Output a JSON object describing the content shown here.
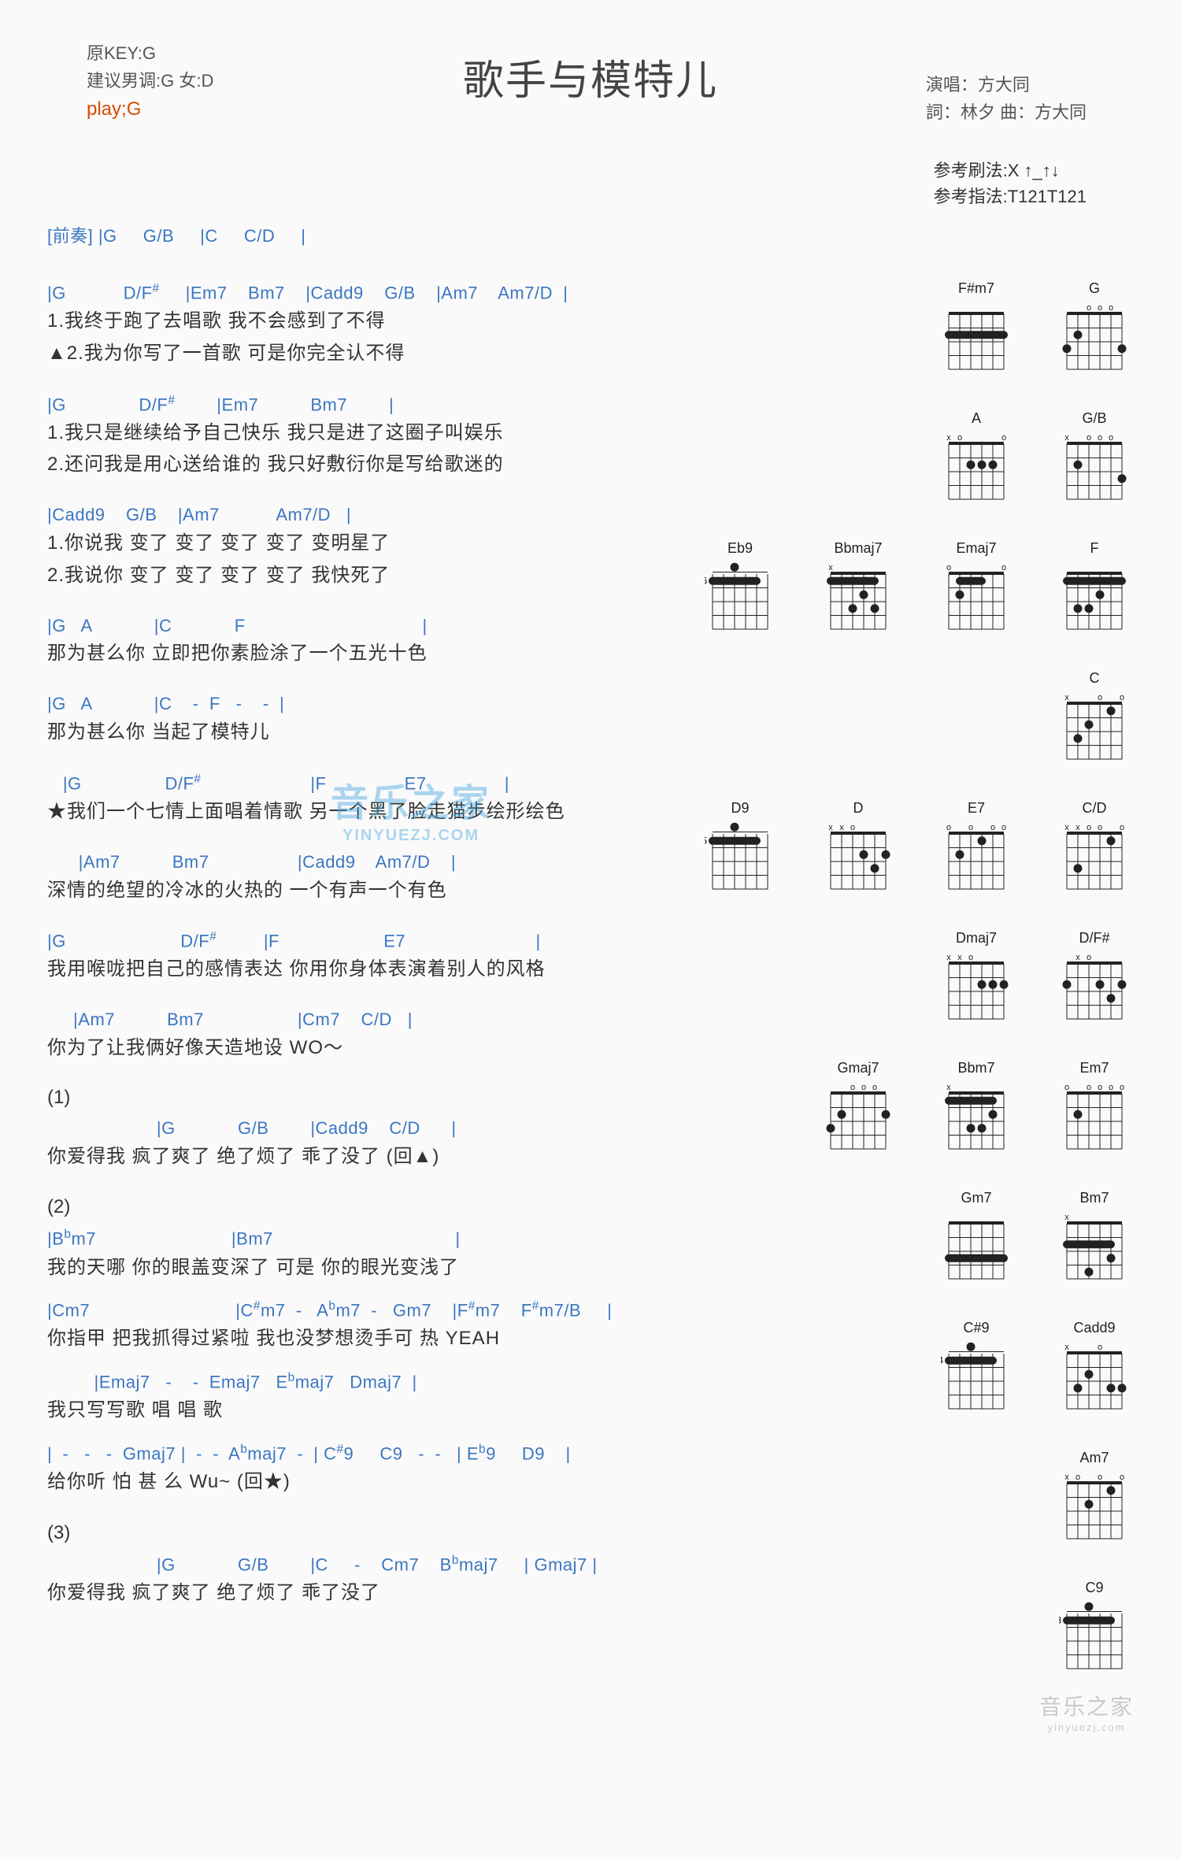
{
  "title": "歌手与模特儿",
  "top_left": {
    "l1": "原KEY:G",
    "l2": "建议男调:G 女:D",
    "l3": "play;G"
  },
  "top_right": {
    "l1": "演唱：方大同",
    "l2": "詞：林夕    曲：方大同"
  },
  "refs": {
    "l1": "参考刷法:X ↑_↑↓",
    "l2": "参考指法:T121T121"
  },
  "intro": "[前奏] |G     G/B     |C     C/D     |",
  "blocks": [
    {
      "chords": "|G           D/F#     |Em7    Bm7    |Cadd9    G/B    |Am7    Am7/D  |",
      "lyrics": [
        "  1.我终于跑了去唱歌                       我不会感到了不得",
        "▲2.我为你写了一首歌                       可是你完全认不得"
      ]
    },
    {
      "chords": "|G              D/F#        |Em7          Bm7        |",
      "lyrics": [
        "  1.我只是继续给予自己快乐    我只是进了这圈子叫娱乐",
        "  2.还问我是用心送给谁的      我只好敷衍你是写给歌迷的"
      ]
    },
    {
      "chords": "|Cadd9    G/B    |Am7           Am7/D   |",
      "lyrics": [
        "  1.你说我     变了 变了 变了 变了    变明星了",
        "  2.我说你     变了 变了 变了 变了    我快死了"
      ]
    },
    {
      "chords": "|G   A            |C            F                                  |",
      "lyrics": [
        "  那为甚么你     立即把你素脸涂了一个五光十色"
      ]
    },
    {
      "chords": "|G   A            |C    -  F   -    -  |",
      "lyrics": [
        "  那为甚么你     当起了模特儿"
      ]
    },
    {
      "chords": "   |G                D/F#                     |F               E7               |",
      "lyrics": [
        "★我们一个七情上面唱着情歌     另一个黑了脸走猫步绘形绘色"
      ]
    },
    {
      "chords": "      |Am7          Bm7                 |Cadd9    Am7/D    |",
      "lyrics": [
        "    深情的绝望的冷冰的火热的     一个有声一个有色"
      ]
    },
    {
      "chords": "|G                      D/F#         |F                    E7                         |",
      "lyrics": [
        "  我用喉咙把自己的感情表达     你用你身体表演着别人的风格"
      ]
    },
    {
      "chords": "     |Am7          Bm7                  |Cm7    C/D   |",
      "lyrics": [
        "    你为了让我俩好像天造地设     WO～"
      ]
    }
  ],
  "section1": {
    "label": "(1)",
    "chords": "                     |G            G/B        |Cadd9    C/D      |",
    "lyric": "    你爱得我     疯了爽了     绝了烦了     乖了没了            (回▲)"
  },
  "section2": {
    "label": "(2)",
    "lines": [
      {
        "chords": "|Bᵇm7                          |Bm7                                   |",
        "lyric": " 我的天哪     你的眼盖变深了     可是     你的眼光变浅了"
      },
      {
        "chords": "|Cm7                            |C#m7  -   Aᵇm7  -   Gm7    |F#m7    F#m7/B     |",
        "lyric": " 你指甲    把我抓得过紧啦       我也没梦想烫手可                         热       YEAH"
      },
      {
        "chords": "         |Emaj7   -    -  Emaj7   Eᵇmaj7   Dmaj7  |",
        "lyric": " 我只写写歌           唱         唱          歌"
      },
      {
        "chords": "|  -   -   -  Gmaj7 |  -  -  Aᵇmaj7  -  | C#9     C9   -  -   | Eᵇ9     D9    |",
        "lyric": "              给你听             怕        甚      么         Wu~           (回★)"
      }
    ]
  },
  "section3": {
    "label": "(3)",
    "chords": "                     |G            G/B        |C     -    Cm7    Bᵇmaj7     | Gmaj7 |",
    "lyric": "    你爱得我     疯了爽了     绝了烦了     乖了没了"
  },
  "diagram_rows": [
    [
      "F#m7",
      "G"
    ],
    [
      "A",
      "G/B"
    ],
    [
      "Eb9",
      "Bbmaj7",
      "Emaj7",
      "F",
      "C"
    ],
    [
      "D9",
      "D",
      "E7",
      "C/D"
    ],
    [
      "Dmaj7",
      "D/F#"
    ],
    [
      "Gmaj7",
      "Bbm7",
      "Em7"
    ],
    [
      "Gm7",
      "Bm7"
    ],
    [
      "C#9",
      "Cadd9"
    ],
    [
      "Am7"
    ],
    [
      "C9"
    ]
  ],
  "chord_diagrams": {
    "F#m7": {
      "fret": 0,
      "barre": {
        "fret": 2,
        "from": 1,
        "to": 6
      },
      "dots": [],
      "marks": [
        "",
        "",
        "",
        "",
        "",
        ""
      ]
    },
    "G": {
      "fret": 0,
      "dots": [
        {
          "s": 6,
          "f": 3
        },
        {
          "s": 5,
          "f": 2
        },
        {
          "s": 1,
          "f": 3
        }
      ],
      "marks": [
        "",
        "",
        "o",
        "o",
        "o",
        ""
      ]
    },
    "A": {
      "fret": 0,
      "dots": [
        {
          "s": 4,
          "f": 2
        },
        {
          "s": 3,
          "f": 2
        },
        {
          "s": 2,
          "f": 2
        }
      ],
      "marks": [
        "x",
        "o",
        "",
        "",
        "",
        "o"
      ]
    },
    "G/B": {
      "fret": 0,
      "dots": [
        {
          "s": 5,
          "f": 2
        },
        {
          "s": 1,
          "f": 3
        }
      ],
      "marks": [
        "x",
        "",
        "o",
        "o",
        "o",
        ""
      ]
    },
    "Eb9": {
      "fret": 6,
      "barre": {
        "fret": 1,
        "from": 1,
        "to": 5
      },
      "dots": [
        {
          "s": 4,
          "f": 0
        }
      ],
      "marks": [
        "",
        "",
        "",
        "",
        "",
        ""
      ]
    },
    "Bbmaj7": {
      "fret": 0,
      "barre": {
        "fret": 1,
        "from": 1,
        "to": 5
      },
      "dots": [
        {
          "s": 4,
          "f": 3
        },
        {
          "s": 3,
          "f": 2
        },
        {
          "s": 2,
          "f": 3
        }
      ],
      "marks": [
        "x",
        "",
        "",
        "",
        "",
        ""
      ]
    },
    "Emaj7": {
      "fret": 0,
      "barre": {
        "fret": 1,
        "from": 2,
        "to": 4
      },
      "dots": [
        {
          "s": 5,
          "f": 2
        }
      ],
      "marks": [
        "o",
        "",
        "",
        "",
        "",
        "o"
      ]
    },
    "F": {
      "fret": 0,
      "barre": {
        "fret": 1,
        "from": 1,
        "to": 6
      },
      "dots": [
        {
          "s": 5,
          "f": 3
        },
        {
          "s": 4,
          "f": 3
        },
        {
          "s": 3,
          "f": 2
        }
      ],
      "marks": [
        "",
        "",
        "",
        "",
        "",
        ""
      ]
    },
    "C": {
      "fret": 0,
      "dots": [
        {
          "s": 5,
          "f": 3
        },
        {
          "s": 4,
          "f": 2
        },
        {
          "s": 2,
          "f": 1
        }
      ],
      "marks": [
        "x",
        "",
        "",
        "o",
        "",
        "o"
      ]
    },
    "D9": {
      "fret": 5,
      "barre": {
        "fret": 1,
        "from": 1,
        "to": 5
      },
      "dots": [
        {
          "s": 4,
          "f": 0
        }
      ],
      "marks": [
        "",
        "",
        "",
        "",
        "",
        ""
      ]
    },
    "D": {
      "fret": 0,
      "dots": [
        {
          "s": 3,
          "f": 2
        },
        {
          "s": 2,
          "f": 3
        },
        {
          "s": 1,
          "f": 2
        }
      ],
      "marks": [
        "x",
        "x",
        "o",
        "",
        "",
        ""
      ]
    },
    "E7": {
      "fret": 0,
      "dots": [
        {
          "s": 5,
          "f": 2
        },
        {
          "s": 3,
          "f": 1
        }
      ],
      "marks": [
        "o",
        "",
        "o",
        "",
        "o",
        "o"
      ]
    },
    "C/D": {
      "fret": 0,
      "dots": [
        {
          "s": 5,
          "f": 3
        },
        {
          "s": 2,
          "f": 1
        }
      ],
      "marks": [
        "x",
        "x",
        "o",
        "o",
        "",
        "o"
      ]
    },
    "Dmaj7": {
      "fret": 0,
      "dots": [
        {
          "s": 3,
          "f": 2
        },
        {
          "s": 2,
          "f": 2
        },
        {
          "s": 1,
          "f": 2
        }
      ],
      "marks": [
        "x",
        "x",
        "o",
        "",
        "",
        ""
      ]
    },
    "D/F#": {
      "fret": 0,
      "dots": [
        {
          "s": 6,
          "f": 2
        },
        {
          "s": 3,
          "f": 2
        },
        {
          "s": 2,
          "f": 3
        },
        {
          "s": 1,
          "f": 2
        }
      ],
      "marks": [
        "",
        "x",
        "o",
        "",
        "",
        ""
      ]
    },
    "Gmaj7": {
      "fret": 0,
      "dots": [
        {
          "s": 6,
          "f": 3
        },
        {
          "s": 5,
          "f": 2
        },
        {
          "s": 1,
          "f": 2
        }
      ],
      "marks": [
        "",
        "",
        "o",
        "o",
        "o",
        ""
      ]
    },
    "Bbm7": {
      "fret": 0,
      "barre": {
        "fret": 1,
        "from": 1,
        "to": 5
      },
      "dots": [
        {
          "s": 4,
          "f": 3
        },
        {
          "s": 3,
          "f": 3
        },
        {
          "s": 2,
          "f": 2
        }
      ],
      "marks": [
        "x",
        "",
        "",
        "",
        "",
        ""
      ]
    },
    "Em7": {
      "fret": 0,
      "dots": [
        {
          "s": 5,
          "f": 2
        }
      ],
      "marks": [
        "o",
        "",
        "o",
        "o",
        "o",
        "o"
      ]
    },
    "Gm7": {
      "fret": 0,
      "barre": {
        "fret": 3,
        "from": 1,
        "to": 6
      },
      "dots": [],
      "marks": [
        "",
        "",
        "",
        "",
        "",
        ""
      ]
    },
    "Bm7": {
      "fret": 0,
      "barre": {
        "fret": 2,
        "from": 1,
        "to": 5
      },
      "dots": [
        {
          "s": 4,
          "f": 4
        },
        {
          "s": 2,
          "f": 3
        }
      ],
      "marks": [
        "x",
        "",
        "",
        "",
        "",
        ""
      ]
    },
    "C#9": {
      "fret": 4,
      "barre": {
        "fret": 1,
        "from": 1,
        "to": 5
      },
      "dots": [
        {
          "s": 4,
          "f": 0
        }
      ],
      "marks": [
        "",
        "",
        "",
        "",
        "",
        ""
      ]
    },
    "Cadd9": {
      "fret": 0,
      "dots": [
        {
          "s": 5,
          "f": 3
        },
        {
          "s": 4,
          "f": 2
        },
        {
          "s": 2,
          "f": 3
        },
        {
          "s": 1,
          "f": 3
        }
      ],
      "marks": [
        "x",
        "",
        "",
        "o",
        "",
        ""
      ]
    },
    "Am7": {
      "fret": 0,
      "dots": [
        {
          "s": 4,
          "f": 2
        },
        {
          "s": 2,
          "f": 1
        }
      ],
      "marks": [
        "x",
        "o",
        "",
        "o",
        "",
        "o"
      ]
    },
    "C9": {
      "fret": 3,
      "barre": {
        "fret": 1,
        "from": 1,
        "to": 5
      },
      "dots": [
        {
          "s": 4,
          "f": 0
        }
      ],
      "marks": [
        "",
        "",
        "",
        "",
        "",
        ""
      ]
    }
  },
  "colors": {
    "chord": "#3b76c2",
    "text": "#333333",
    "accent": "#d94a00",
    "background": "#fafafa"
  },
  "watermark": {
    "main": "音乐之家",
    "sub": "YINYUEZJ.COM"
  },
  "footer": {
    "main": "音乐之家",
    "sub": "yinyuezj.com"
  }
}
